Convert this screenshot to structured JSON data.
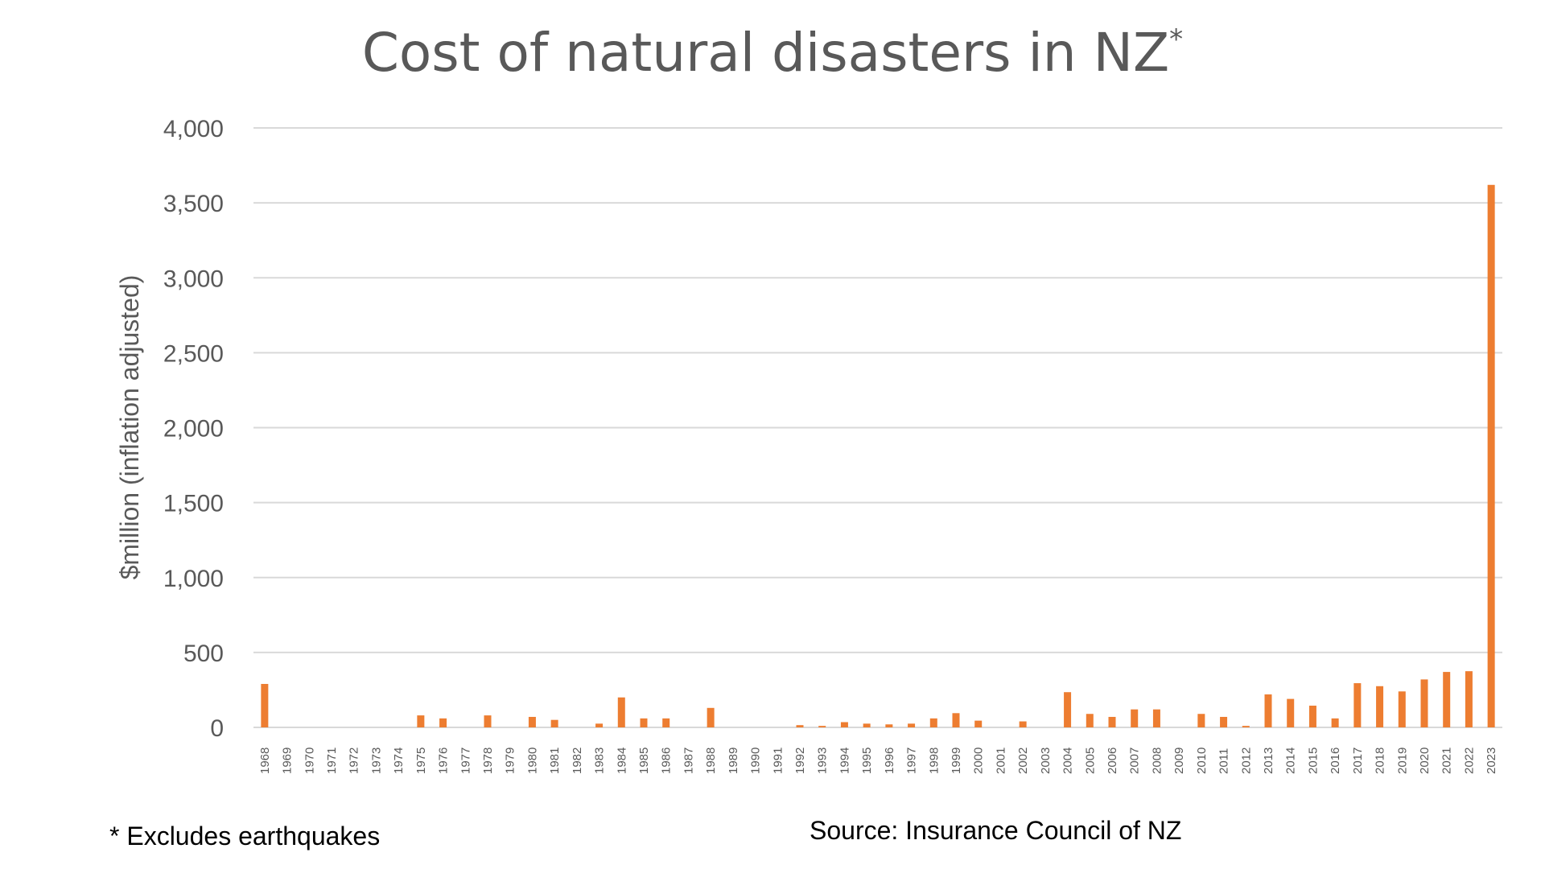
{
  "chart_data": {
    "type": "bar",
    "title": "Cost of natural disasters in NZ",
    "title_marker": "*",
    "ylabel": "$million (inflation adjusted)",
    "xlabel": "",
    "ylim": [
      0,
      4000
    ],
    "yticks": [
      0,
      500,
      1000,
      1500,
      2000,
      2500,
      3000,
      3500,
      4000
    ],
    "ytick_labels": [
      "0",
      "500",
      "1,000",
      "1,500",
      "2,000",
      "2,500",
      "3,000",
      "3,500",
      "4,000"
    ],
    "grid": true,
    "bar_color": "#ED7D31",
    "grid_color": "#D9D9D9",
    "text_color": "#595959",
    "categories": [
      "1968",
      "1969",
      "1970",
      "1971",
      "1972",
      "1973",
      "1974",
      "1975",
      "1976",
      "1977",
      "1978",
      "1979",
      "1980",
      "1981",
      "1982",
      "1983",
      "1984",
      "1985",
      "1986",
      "1987",
      "1988",
      "1989",
      "1990",
      "1991",
      "1992",
      "1993",
      "1994",
      "1995",
      "1996",
      "1997",
      "1998",
      "1999",
      "2000",
      "2001",
      "2002",
      "2003",
      "2004",
      "2005",
      "2006",
      "2007",
      "2008",
      "2009",
      "2010",
      "2011",
      "2012",
      "2013",
      "2014",
      "2015",
      "2016",
      "2017",
      "2018",
      "2019",
      "2020",
      "2021",
      "2022",
      "2023"
    ],
    "values": [
      290,
      0,
      0,
      0,
      0,
      0,
      0,
      80,
      60,
      0,
      80,
      0,
      70,
      50,
      0,
      25,
      200,
      60,
      60,
      0,
      130,
      0,
      0,
      0,
      15,
      10,
      35,
      25,
      20,
      25,
      60,
      95,
      45,
      0,
      40,
      0,
      235,
      90,
      70,
      120,
      120,
      0,
      90,
      70,
      10,
      220,
      190,
      145,
      60,
      295,
      275,
      240,
      320,
      370,
      375,
      3620
    ]
  },
  "footnote": "* Excludes earthquakes",
  "source": "Source: Insurance Council of NZ"
}
